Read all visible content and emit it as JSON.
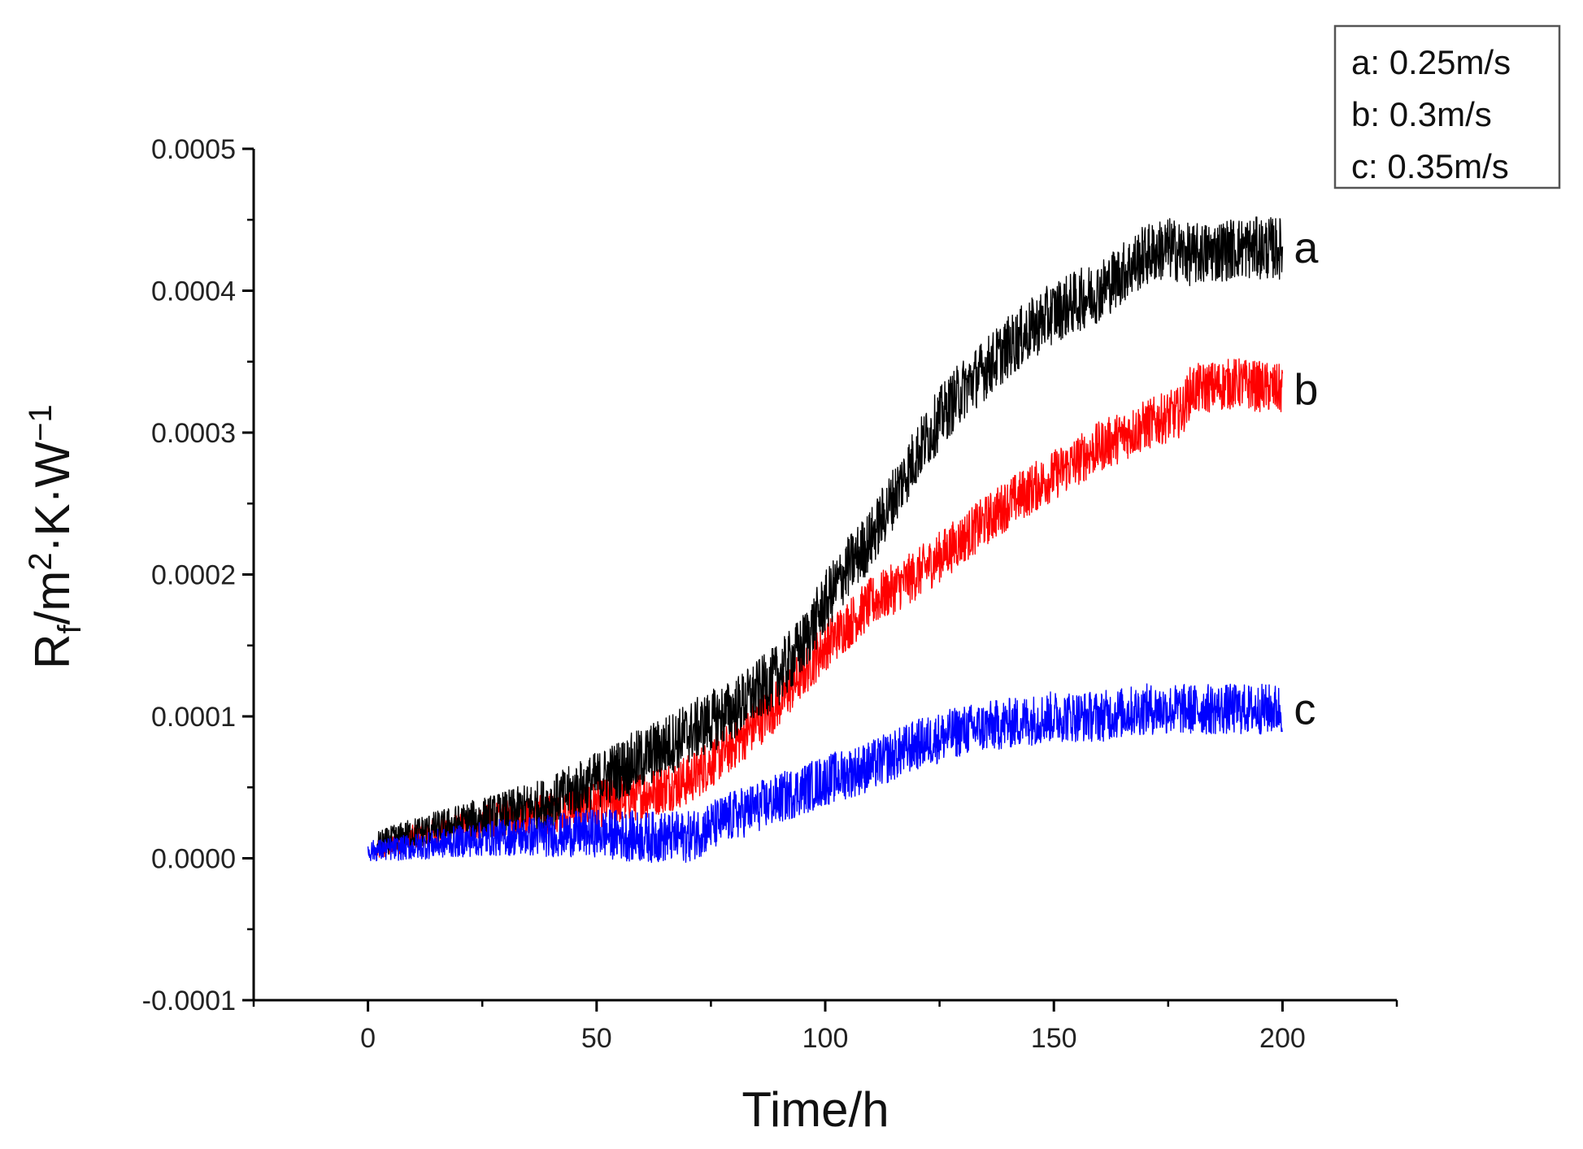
{
  "chart_data": {
    "type": "line",
    "title": "",
    "xlabel": "Time/h",
    "ylabel_parts": {
      "base": "R",
      "sub": "f",
      "mid": "/m",
      "sup1": "2",
      "rest": "·K·W",
      "sup2": "−1"
    },
    "xlim": [
      -25,
      225
    ],
    "ylim": [
      -0.0001,
      0.0005
    ],
    "x_ticks": [
      0,
      50,
      100,
      150,
      200
    ],
    "x_tick_labels": [
      "0",
      "50",
      "100",
      "150",
      "200"
    ],
    "y_ticks": [
      -0.0001,
      0,
      0.0001,
      0.0002,
      0.0003,
      0.0004,
      0.0005
    ],
    "y_tick_labels": [
      "-0.0001",
      "0.0000",
      "0.0001",
      "0.0002",
      "0.0003",
      "0.0004",
      "0.0005"
    ],
    "legend": [
      "a: 0.25m/s",
      "b: 0.3m/s",
      "c: 0.35m/s"
    ],
    "legend_position": "top-right",
    "series": [
      {
        "name": "a",
        "label": "a",
        "color": "#000000",
        "noise": 2.2e-05,
        "x": [
          2,
          10,
          20,
          30,
          40,
          50,
          60,
          70,
          80,
          90,
          95,
          100,
          105,
          110,
          115,
          120,
          125,
          130,
          140,
          150,
          160,
          170,
          175,
          180,
          190,
          200
        ],
        "y": [
          1e-05,
          1.8e-05,
          2.5e-05,
          3.2e-05,
          4e-05,
          5.5e-05,
          7e-05,
          8.8e-05,
          0.000105,
          0.00013,
          0.00015,
          0.00018,
          0.000205,
          0.000225,
          0.000255,
          0.000285,
          0.00031,
          0.00033,
          0.00036,
          0.000385,
          0.0004,
          0.000425,
          0.00043,
          0.000425,
          0.00043,
          0.00043
        ]
      },
      {
        "name": "b",
        "label": "b",
        "color": "#ff0000",
        "noise": 1.8e-05,
        "x": [
          2,
          10,
          20,
          30,
          40,
          50,
          60,
          70,
          80,
          90,
          100,
          110,
          120,
          130,
          140,
          150,
          160,
          170,
          178,
          180,
          190,
          200
        ],
        "y": [
          5e-06,
          1.5e-05,
          2.2e-05,
          2.8e-05,
          3.2e-05,
          3.8e-05,
          4.5e-05,
          5.5e-05,
          8e-05,
          0.00011,
          0.00015,
          0.00018,
          0.0002,
          0.000225,
          0.00025,
          0.00027,
          0.00029,
          0.000305,
          0.000315,
          0.00033,
          0.000335,
          0.00033
        ]
      },
      {
        "name": "c",
        "label": "c",
        "color": "#0000ff",
        "noise": 1.8e-05,
        "x": [
          0,
          10,
          20,
          30,
          40,
          50,
          60,
          70,
          80,
          90,
          100,
          110,
          120,
          130,
          140,
          150,
          160,
          170,
          180,
          190,
          200
        ],
        "y": [
          5e-06,
          8e-06,
          1.2e-05,
          1.5e-05,
          1.6e-05,
          1.8e-05,
          1.5e-05,
          1.5e-05,
          3e-05,
          4.2e-05,
          5.5e-05,
          6.5e-05,
          8e-05,
          9e-05,
          9.5e-05,
          0.0001,
          0.0001,
          0.000105,
          0.000105,
          0.000105,
          0.000105
        ]
      }
    ]
  }
}
